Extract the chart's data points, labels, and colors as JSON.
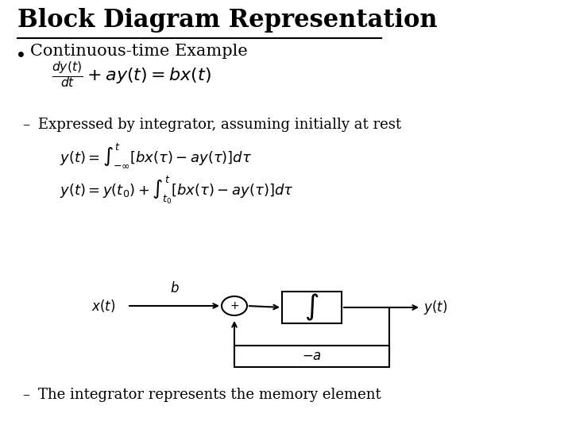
{
  "title": "Block Diagram Representation",
  "background_color": "#ffffff",
  "bullet_text": "Continuous-time Example",
  "sub_text1": "Expressed by integrator, assuming initially at rest",
  "sub_text2": "The integrator represents the memory element",
  "title_fontsize": 22,
  "bullet_fontsize": 15,
  "eq_fontsize": 13,
  "sub_fontsize": 13,
  "diagram_fontsize": 12
}
